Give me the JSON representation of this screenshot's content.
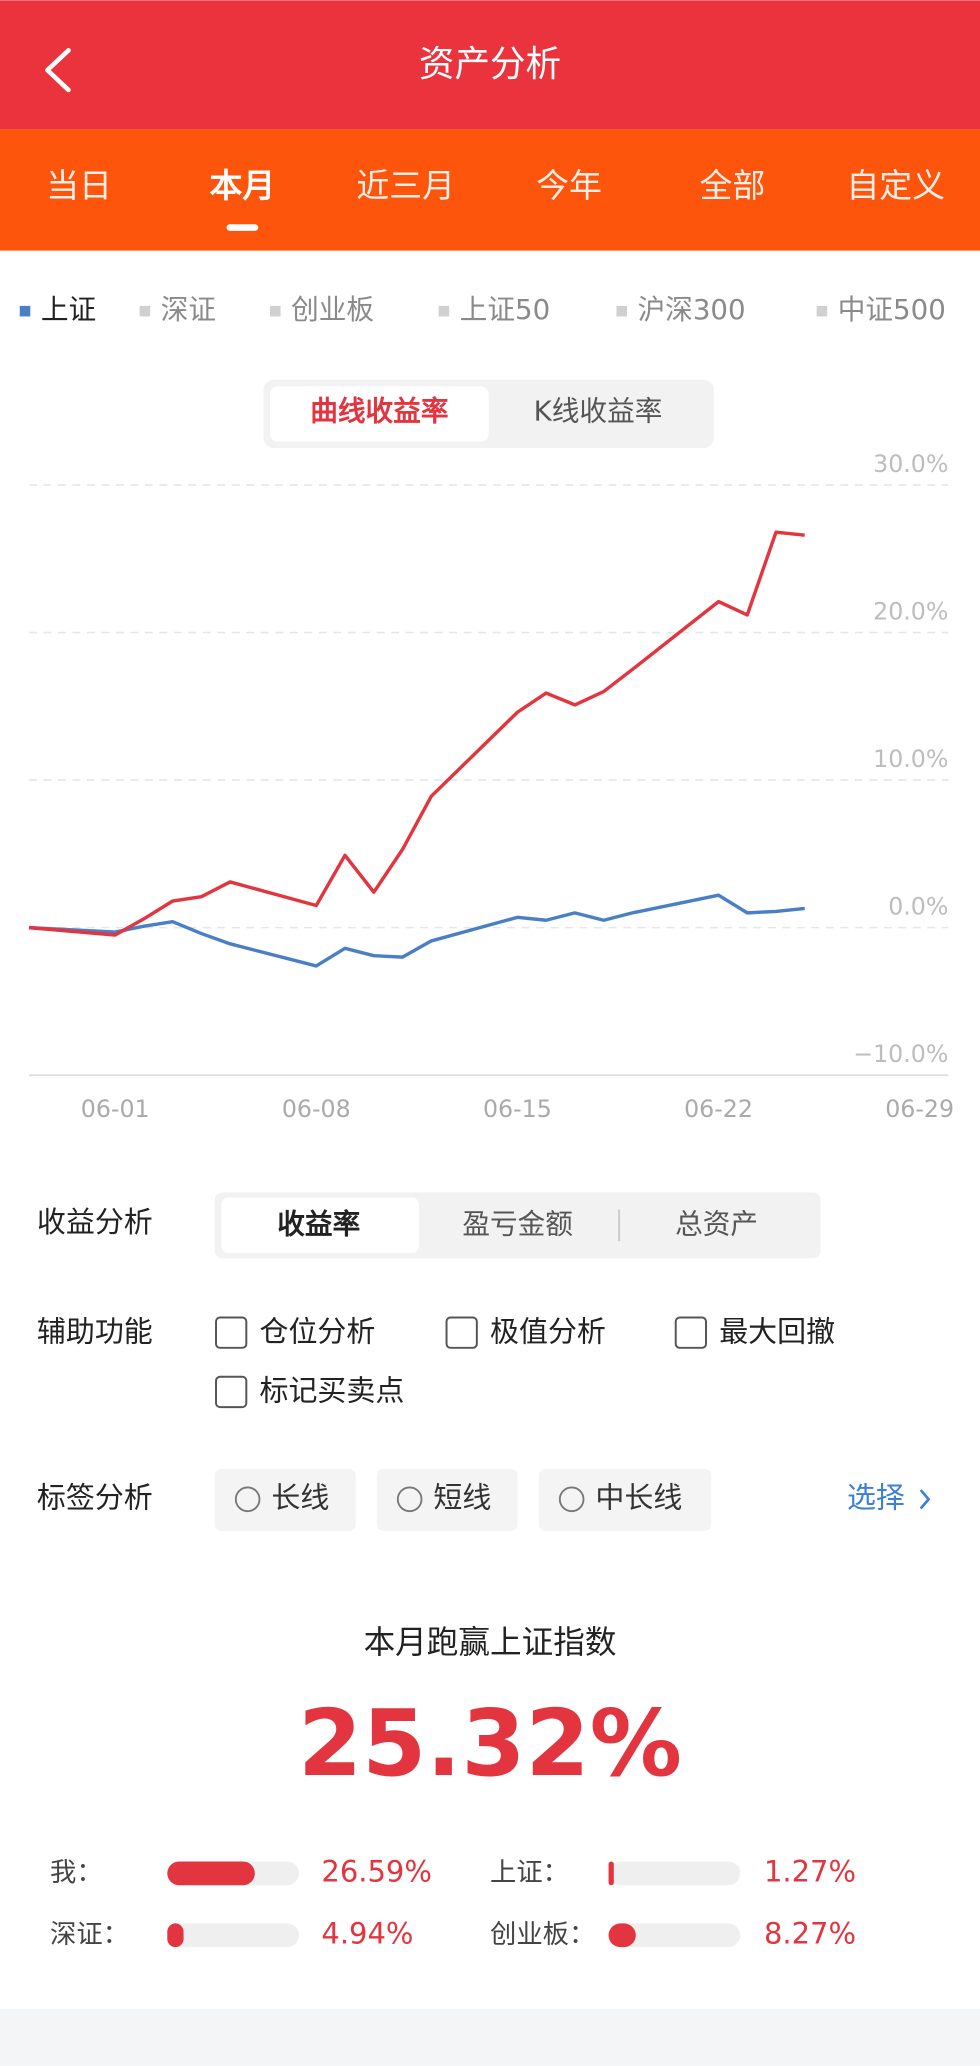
{
  "header": {
    "title": "资产分析"
  },
  "tabs": {
    "items": [
      "当日",
      "本月",
      "近三月",
      "今年",
      "全部",
      "自定义"
    ],
    "active": 1
  },
  "benchmarks": {
    "items": [
      "上证",
      "深证",
      "创业板",
      "上证50",
      "沪深300",
      "中证500"
    ],
    "active": 0
  },
  "chart_modes": {
    "items": [
      "曲线收益率",
      "K线收益率"
    ],
    "active": 0
  },
  "chart_data": {
    "type": "line",
    "x": [
      "05-29",
      "06-01",
      "06-02",
      "06-03",
      "06-04",
      "06-05",
      "06-08",
      "06-09",
      "06-10",
      "06-11",
      "06-12",
      "06-15",
      "06-16",
      "06-17",
      "06-18",
      "06-19",
      "06-22",
      "06-23",
      "06-24",
      "06-25"
    ],
    "series": [
      {
        "name": "我",
        "color": "#e2353f",
        "values": [
          0,
          -0.5,
          0.6,
          1.8,
          2.1,
          3.1,
          1.5,
          4.9,
          2.4,
          5.3,
          8.9,
          14.6,
          15.9,
          15.1,
          16.0,
          17.5,
          22.1,
          21.2,
          26.8,
          26.6
        ]
      },
      {
        "name": "上证",
        "color": "#4a7fc6",
        "values": [
          0,
          -0.3,
          0.1,
          0.4,
          -0.4,
          -1.1,
          -2.6,
          -1.4,
          -1.9,
          -2.0,
          -0.9,
          0.7,
          0.5,
          1.0,
          0.5,
          1.0,
          2.2,
          1.0,
          1.1,
          1.3
        ]
      }
    ],
    "xlim": [
      "05-29",
      "06-30"
    ],
    "xticks": [
      "06-01",
      "06-08",
      "06-15",
      "06-22",
      "06-29"
    ],
    "ylim": [
      -10,
      30
    ],
    "yticks": [
      {
        "value": -10,
        "label": "−10.0%"
      },
      {
        "value": 0,
        "label": "0.0%"
      },
      {
        "value": 10,
        "label": "10.0%"
      },
      {
        "value": 20,
        "label": "20.0%"
      },
      {
        "value": 30,
        "label": "30.0%"
      }
    ],
    "grid": true
  },
  "profit_analysis": {
    "label": "收益分析",
    "options": [
      "收益率",
      "盈亏金额",
      "总资产"
    ],
    "active": 0
  },
  "aux": {
    "label": "辅助功能",
    "options": [
      "仓位分析",
      "极值分析",
      "最大回撤",
      "标记买卖点"
    ]
  },
  "tags": {
    "label": "标签分析",
    "options": [
      "长线",
      "短线",
      "中长线"
    ],
    "action": "选择"
  },
  "summary": {
    "title": "本月跑赢上证指数",
    "value": 25.32,
    "value_label": "25.32%",
    "items": [
      {
        "name": "我：",
        "value": 26.59,
        "value_label": "26.59%"
      },
      {
        "name": "上证：",
        "value": 1.27,
        "value_label": "1.27%"
      },
      {
        "name": "深证：",
        "value": 4.94,
        "value_label": "4.94%"
      },
      {
        "name": "创业板：",
        "value": 8.27,
        "value_label": "8.27%"
      }
    ]
  }
}
